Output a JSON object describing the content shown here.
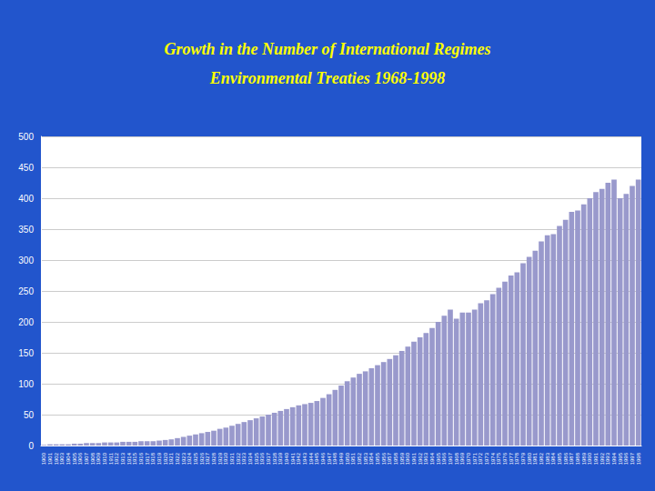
{
  "chart_data": {
    "type": "bar",
    "title": "Growth in the Number of International Regimes",
    "subtitle": "Environmental Treaties 1968-1998",
    "categories": [
      "1900",
      "1901",
      "1902",
      "1903",
      "1904",
      "1905",
      "1906",
      "1907",
      "1908",
      "1909",
      "1910",
      "1911",
      "1912",
      "1913",
      "1914",
      "1915",
      "1916",
      "1917",
      "1918",
      "1919",
      "1920",
      "1921",
      "1922",
      "1923",
      "1924",
      "1925",
      "1926",
      "1927",
      "1928",
      "1929",
      "1930",
      "1931",
      "1932",
      "1933",
      "1934",
      "1935",
      "1936",
      "1937",
      "1938",
      "1939",
      "1940",
      "1941",
      "1942",
      "1943",
      "1944",
      "1945",
      "1946",
      "1947",
      "1948",
      "1949",
      "1950",
      "1951",
      "1952",
      "1953",
      "1954",
      "1955",
      "1956",
      "1957",
      "1958",
      "1959",
      "1960",
      "1961",
      "1962",
      "1963",
      "1964",
      "1965",
      "1966",
      "1967",
      "1968",
      "1969",
      "1970",
      "1971",
      "1972",
      "1973",
      "1974",
      "1975",
      "1976",
      "1977",
      "1978",
      "1979",
      "1980",
      "1981",
      "1982",
      "1983",
      "1984",
      "1985",
      "1986",
      "1987",
      "1988",
      "1989",
      "1990",
      "1991",
      "1992",
      "1993",
      "1994",
      "1995",
      "1996",
      "1997",
      "1998"
    ],
    "values": [
      1,
      2,
      2,
      2,
      2,
      3,
      3,
      4,
      4,
      4,
      5,
      5,
      5,
      6,
      6,
      6,
      7,
      7,
      7,
      8,
      9,
      10,
      12,
      14,
      16,
      18,
      20,
      22,
      24,
      27,
      29,
      32,
      35,
      38,
      41,
      44,
      47,
      50,
      53,
      56,
      59,
      62,
      65,
      67,
      69,
      72,
      77,
      83,
      90,
      97,
      104,
      110,
      116,
      120,
      125,
      130,
      135,
      140,
      146,
      153,
      160,
      168,
      175,
      182,
      190,
      200,
      210,
      220,
      205,
      215,
      215,
      220,
      230,
      235,
      245,
      255,
      265,
      275,
      280,
      295,
      305,
      315,
      330,
      340,
      342,
      355,
      365,
      378,
      380,
      390,
      400,
      410,
      415,
      425,
      430,
      400,
      407,
      420,
      430
    ],
    "color": "#9999CC",
    "ylim": [
      0,
      500
    ],
    "yticks": [
      0,
      50,
      100,
      150,
      200,
      250,
      300,
      350,
      400,
      450,
      500
    ],
    "grid": true
  }
}
